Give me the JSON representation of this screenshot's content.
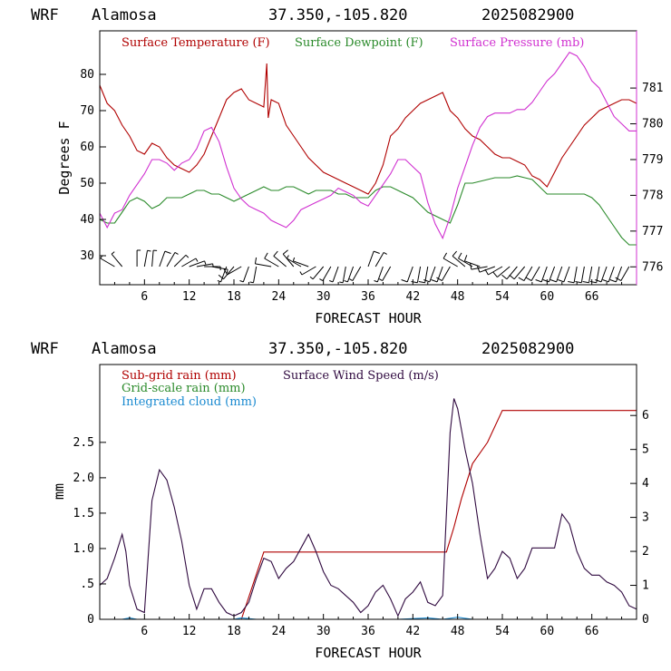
{
  "colors": {
    "temperature": "#b00000",
    "dewpoint": "#2a8a2a",
    "pressure": "#d030d0",
    "subgrid_rain": "#b00000",
    "gridscale_rain": "#2a8a2a",
    "cloud": "#1a8ad0",
    "wind_speed": "#300a40"
  },
  "chart_data": [
    {
      "type": "line",
      "header": {
        "model": "WRF",
        "site": "Alamosa",
        "coords": "37.350,-105.820",
        "init": "2025082900"
      },
      "xlabel": "FORECAST HOUR",
      "ylabel": "Degrees F",
      "xlim": [
        0,
        72
      ],
      "ylim": [
        22,
        92
      ],
      "y2lim": [
        775.5,
        782.6
      ],
      "xticks": [
        6,
        12,
        18,
        24,
        30,
        36,
        42,
        48,
        54,
        60,
        66
      ],
      "xtick_labels": [
        "6",
        "12",
        "18",
        "24",
        "30",
        "36",
        "42",
        "48",
        "54",
        "60",
        "66"
      ],
      "yticks": [
        30,
        40,
        50,
        60,
        70,
        80
      ],
      "ytick_labels": [
        "30",
        "40",
        "50",
        "60",
        "70",
        "80"
      ],
      "y2ticks": [
        776,
        777,
        778,
        779,
        780,
        781
      ],
      "y2tick_labels": [
        "776",
        "777",
        "778",
        "779",
        "780",
        "781"
      ],
      "legend_placement": "top",
      "series": [
        {
          "name": "Surface Temperature (F)",
          "axis": "left",
          "x": [
            0,
            1,
            2,
            3,
            4,
            5,
            6,
            7,
            8,
            9,
            10,
            11,
            12,
            13,
            14,
            15,
            16,
            17,
            18,
            19,
            20,
            21,
            22,
            22.4,
            22.6,
            23,
            24,
            25,
            26,
            27,
            28,
            29,
            30,
            31,
            32,
            33,
            34,
            35,
            36,
            37,
            38,
            39,
            40,
            41,
            42,
            43,
            44,
            45,
            46,
            47,
            48,
            49,
            50,
            51,
            52,
            53,
            54,
            55,
            56,
            57,
            58,
            59,
            60,
            61,
            62,
            63,
            64,
            65,
            66,
            67,
            68,
            69,
            70,
            71,
            72
          ],
          "values": [
            77,
            72,
            70,
            66,
            63,
            59,
            58,
            61,
            60,
            57,
            55,
            54,
            53,
            55,
            58,
            63,
            68,
            73,
            75,
            76,
            73,
            72,
            71,
            83,
            68,
            73,
            72,
            66,
            63,
            60,
            57,
            55,
            53,
            52,
            51,
            50,
            49,
            48,
            47,
            50,
            55,
            63,
            65,
            68,
            70,
            72,
            73,
            74,
            75,
            70,
            68,
            65,
            63,
            62,
            60,
            58,
            57,
            57,
            56,
            55,
            52,
            51,
            49,
            53,
            57,
            60,
            63,
            66,
            68,
            70,
            71,
            72,
            73,
            73,
            72
          ]
        },
        {
          "name": "Surface Dewpoint (F)",
          "axis": "left",
          "x": [
            0,
            1,
            2,
            3,
            4,
            5,
            6,
            7,
            8,
            9,
            10,
            11,
            12,
            13,
            14,
            15,
            16,
            17,
            18,
            19,
            20,
            21,
            22,
            23,
            24,
            25,
            26,
            27,
            28,
            29,
            30,
            31,
            32,
            33,
            34,
            35,
            36,
            37,
            38,
            39,
            40,
            41,
            42,
            43,
            44,
            45,
            46,
            47,
            48,
            49,
            50,
            51,
            52,
            53,
            54,
            55,
            56,
            57,
            58,
            59,
            60,
            61,
            62,
            63,
            64,
            65,
            66,
            67,
            68,
            69,
            70,
            71,
            72
          ],
          "values": [
            40,
            39,
            39,
            42,
            45,
            46,
            45,
            43,
            44,
            46,
            46,
            46,
            47,
            48,
            48,
            47,
            47,
            46,
            45,
            46,
            47,
            48,
            49,
            48,
            48,
            49,
            49,
            48,
            47,
            48,
            48,
            48,
            47,
            47,
            46,
            46,
            46,
            48,
            49,
            49,
            48,
            47,
            46,
            44,
            42,
            41,
            40,
            39,
            44,
            50,
            50,
            50.5,
            51,
            51.5,
            51.5,
            51.5,
            52,
            51.5,
            51,
            49,
            47,
            47,
            47,
            47,
            47,
            47,
            46,
            44,
            41,
            38,
            35,
            33,
            33
          ]
        },
        {
          "name": "Surface Pressure (mb)",
          "axis": "right",
          "x": [
            0,
            1,
            2,
            3,
            4,
            5,
            6,
            7,
            8,
            9,
            10,
            11,
            12,
            13,
            14,
            15,
            16,
            17,
            18,
            19,
            20,
            21,
            22,
            23,
            24,
            25,
            26,
            27,
            28,
            29,
            30,
            31,
            32,
            33,
            34,
            35,
            36,
            37,
            38,
            39,
            40,
            41,
            42,
            43,
            44,
            45,
            46,
            47,
            48,
            49,
            50,
            51,
            52,
            53,
            54,
            55,
            56,
            57,
            58,
            59,
            60,
            61,
            62,
            63,
            64,
            65,
            66,
            67,
            68,
            69,
            70,
            71,
            72
          ],
          "values": [
            777.5,
            777.1,
            777.5,
            777.6,
            778,
            778.3,
            778.6,
            779,
            779,
            778.9,
            778.7,
            778.9,
            779,
            779.3,
            779.8,
            779.9,
            779.5,
            778.8,
            778.2,
            777.9,
            777.7,
            777.6,
            777.5,
            777.3,
            777.2,
            777.1,
            777.3,
            777.6,
            777.7,
            777.8,
            777.9,
            778,
            778.2,
            778.1,
            778,
            777.8,
            777.7,
            778,
            778.3,
            778.6,
            779,
            779,
            778.8,
            778.6,
            777.8,
            777.2,
            776.8,
            777.4,
            778.2,
            778.8,
            779.4,
            779.9,
            780.2,
            780.3,
            780.3,
            780.3,
            780.4,
            780.4,
            780.6,
            780.9,
            781.2,
            781.4,
            781.7,
            782,
            781.9,
            781.6,
            781.2,
            781,
            780.6,
            780.2,
            780,
            779.8,
            779.8
          ]
        }
      ],
      "wind_barbs": {
        "x": [
          2,
          3,
          5,
          6,
          7,
          8,
          9,
          10,
          11,
          12,
          13,
          14,
          15,
          17,
          18,
          19,
          20,
          21,
          23,
          24,
          25,
          26,
          27,
          28,
          29,
          30,
          31,
          32,
          33,
          34,
          35,
          36,
          37,
          38,
          39,
          42,
          43,
          44,
          45,
          46,
          47,
          48,
          49,
          50,
          51,
          52,
          53,
          54,
          55,
          56,
          57,
          58,
          59,
          60,
          61,
          62,
          63,
          64,
          65,
          66,
          67,
          68,
          69,
          70,
          71
        ],
        "direction_deg": [
          300,
          320,
          0,
          10,
          5,
          20,
          30,
          45,
          60,
          70,
          80,
          90,
          100,
          200,
          220,
          240,
          200,
          190,
          280,
          300,
          310,
          320,
          300,
          290,
          240,
          220,
          210,
          200,
          190,
          200,
          210,
          20,
          30,
          200,
          210,
          200,
          190,
          190,
          200,
          200,
          210,
          300,
          310,
          300,
          290,
          260,
          250,
          240,
          230,
          220,
          220,
          210,
          210,
          200,
          200,
          200,
          200,
          190,
          190,
          190,
          190,
          200,
          200,
          200,
          210
        ],
        "speed_kt": [
          5,
          5,
          5,
          5,
          5,
          10,
          5,
          5,
          5,
          5,
          5,
          5,
          5,
          5,
          10,
          10,
          5,
          5,
          10,
          10,
          10,
          10,
          5,
          5,
          5,
          5,
          5,
          5,
          5,
          5,
          5,
          10,
          5,
          5,
          5,
          10,
          10,
          10,
          10,
          10,
          10,
          10,
          10,
          10,
          10,
          10,
          10,
          10,
          10,
          10,
          10,
          10,
          10,
          10,
          10,
          10,
          10,
          10,
          10,
          10,
          10,
          10,
          10,
          10,
          10
        ]
      }
    },
    {
      "type": "line",
      "header": {
        "model": "WRF",
        "site": "Alamosa",
        "coords": "37.350,-105.820",
        "init": "2025082900"
      },
      "xlabel": "FORECAST HOUR",
      "ylabel": "mm",
      "xlim": [
        0,
        72
      ],
      "ylim": [
        0,
        3.6
      ],
      "y2lim": [
        0,
        7.5
      ],
      "xticks": [
        6,
        12,
        18,
        24,
        30,
        36,
        42,
        48,
        54,
        60,
        66
      ],
      "xtick_labels": [
        "6",
        "12",
        "18",
        "24",
        "30",
        "36",
        "42",
        "48",
        "54",
        "60",
        "66"
      ],
      "yticks": [
        0,
        0.5,
        1.0,
        1.5,
        2.0,
        2.5
      ],
      "ytick_labels": [
        "0",
        ".5",
        "1.0",
        "1.5",
        "2.0",
        "2.5"
      ],
      "y2ticks": [
        0,
        1,
        2,
        3,
        4,
        5,
        6
      ],
      "y2tick_labels": [
        "0",
        "1",
        "2",
        "3",
        "4",
        "5",
        "6"
      ],
      "legend_placement": "top-left",
      "series": [
        {
          "name": "Sub-grid rain (mm)",
          "axis": "left",
          "x": [
            0,
            19,
            22,
            46.5,
            47.5,
            48.5,
            50,
            52,
            54,
            72
          ],
          "values": [
            0,
            0,
            0.95,
            0.95,
            1.3,
            1.7,
            2.2,
            2.5,
            2.95,
            2.95
          ]
        },
        {
          "name": "Grid-scale rain (mm)",
          "axis": "left",
          "x": [
            0,
            72
          ],
          "values": [
            0,
            0
          ]
        },
        {
          "name": "Integrated cloud (mm)",
          "axis": "left",
          "x": [
            0,
            3,
            4,
            5,
            6,
            8,
            10,
            12,
            14,
            16,
            18,
            19,
            21,
            24,
            28,
            32,
            36,
            40,
            44,
            46,
            48,
            50,
            54,
            58,
            62,
            66,
            70,
            72
          ],
          "values": [
            0,
            0,
            0.02,
            0,
            0,
            0,
            0,
            0,
            0,
            0,
            0,
            0.02,
            0,
            0,
            0,
            0,
            0,
            0,
            0.02,
            0,
            0.03,
            0,
            0,
            0,
            0,
            0,
            0,
            0
          ]
        },
        {
          "name": "Surface Wind Speed (m/s)",
          "axis": "right",
          "x": [
            0,
            1,
            2,
            3,
            3.5,
            4,
            5,
            6,
            7,
            8,
            9,
            10,
            11,
            12,
            13,
            14,
            15,
            16,
            17,
            18,
            19,
            20,
            21,
            22,
            23,
            24,
            25,
            26,
            27,
            28,
            29,
            30,
            31,
            32,
            33,
            34,
            35,
            36,
            37,
            38,
            39,
            40,
            41,
            42,
            43,
            44,
            45,
            46,
            47,
            47.5,
            48,
            49,
            50,
            51,
            52,
            53,
            54,
            55,
            56,
            57,
            58,
            59,
            60,
            61,
            62,
            63,
            64,
            65,
            66,
            67,
            68,
            69,
            70,
            71,
            72
          ],
          "values": [
            1,
            1.2,
            1.8,
            2.5,
            2,
            1,
            0.3,
            0.2,
            3.5,
            4.4,
            4.1,
            3.3,
            2.3,
            1,
            0.3,
            0.9,
            0.9,
            0.5,
            0.2,
            0.1,
            0.2,
            0.5,
            1.2,
            1.8,
            1.7,
            1.2,
            1.5,
            1.7,
            2.1,
            2.5,
            2,
            1.4,
            1,
            0.9,
            0.7,
            0.5,
            0.2,
            0.4,
            0.8,
            1.0,
            0.6,
            0.1,
            0.6,
            0.8,
            1.1,
            0.5,
            0.4,
            0.7,
            5.5,
            6.5,
            6.2,
            5,
            4,
            2.5,
            1.2,
            1.5,
            2,
            1.8,
            1.2,
            1.5,
            2.1,
            2.1,
            2.1,
            2.1,
            3.1,
            2.8,
            2.0,
            1.5,
            1.3,
            1.3,
            1.1,
            1,
            0.8,
            0.4,
            0.3
          ]
        }
      ]
    }
  ]
}
